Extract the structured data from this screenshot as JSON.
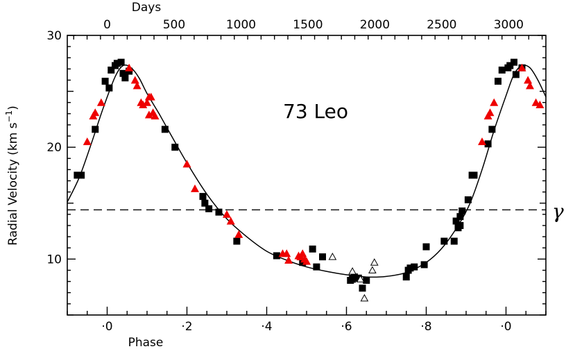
{
  "chart_data": {
    "type": "scatter",
    "title": "73 Leo",
    "xlabel": "Phase",
    "ylabel": "Radial Velocity (km s",
    "ylabel_sup": "−1",
    "ylabel_close": ")",
    "top_axis_label": "Days",
    "xlim": [
      -0.1,
      1.1
    ],
    "ylim": [
      5,
      30
    ],
    "x_ticks": [
      {
        "v": 0.0,
        "label": "·0"
      },
      {
        "v": 0.2,
        "label": "·2"
      },
      {
        "v": 0.4,
        "label": "·4"
      },
      {
        "v": 0.6,
        "label": "·6"
      },
      {
        "v": 0.8,
        "label": "·8"
      },
      {
        "v": 1.0,
        "label": "·0"
      }
    ],
    "y_ticks": [
      {
        "v": 10,
        "label": "10"
      },
      {
        "v": 20,
        "label": "20"
      },
      {
        "v": 30,
        "label": "30"
      }
    ],
    "top_ticks": [
      {
        "v": 0,
        "label": "0"
      },
      {
        "v": 500,
        "label": "500"
      },
      {
        "v": 1000,
        "label": "1000"
      },
      {
        "v": 1500,
        "label": "1500"
      },
      {
        "v": 2000,
        "label": "2000"
      },
      {
        "v": 2500,
        "label": "2500"
      },
      {
        "v": 3000,
        "label": "3000"
      }
    ],
    "days_per_phase": 2980,
    "gamma": {
      "value": 14.4,
      "label": "γ"
    },
    "fit_curve": [
      [
        -0.1,
        15.1
      ],
      [
        -0.07,
        17.3
      ],
      [
        -0.04,
        20.3
      ],
      [
        -0.01,
        23.5
      ],
      [
        0.02,
        26.3
      ],
      [
        0.04,
        27.3
      ],
      [
        0.06,
        27.1
      ],
      [
        0.08,
        26.2
      ],
      [
        0.1,
        24.8
      ],
      [
        0.13,
        23.0
      ],
      [
        0.16,
        21.1
      ],
      [
        0.2,
        18.6
      ],
      [
        0.25,
        15.8
      ],
      [
        0.3,
        13.6
      ],
      [
        0.35,
        12.0
      ],
      [
        0.4,
        10.7
      ],
      [
        0.45,
        9.9
      ],
      [
        0.5,
        9.3
      ],
      [
        0.55,
        8.9
      ],
      [
        0.6,
        8.6
      ],
      [
        0.65,
        8.4
      ],
      [
        0.7,
        8.45
      ],
      [
        0.75,
        8.8
      ],
      [
        0.8,
        9.7
      ],
      [
        0.84,
        11.0
      ],
      [
        0.88,
        13.0
      ],
      [
        0.91,
        15.0
      ],
      [
        0.94,
        18.0
      ],
      [
        0.97,
        21.5
      ],
      [
        1.0,
        24.6
      ],
      [
        1.02,
        26.5
      ],
      [
        1.04,
        27.3
      ],
      [
        1.06,
        27.1
      ],
      [
        1.08,
        26.0
      ],
      [
        1.1,
        24.5
      ]
    ],
    "series": [
      {
        "name": "black-squares",
        "marker": "square",
        "color": "#000000",
        "points": [
          [
            -0.075,
            17.5
          ],
          [
            -0.065,
            17.5
          ],
          [
            -0.03,
            21.6
          ],
          [
            -0.005,
            25.9
          ],
          [
            0.005,
            25.3
          ],
          [
            0.01,
            26.9
          ],
          [
            0.02,
            27.3
          ],
          [
            0.025,
            27.5
          ],
          [
            0.035,
            27.6
          ],
          [
            0.04,
            26.6
          ],
          [
            0.045,
            26.2
          ],
          [
            0.055,
            26.8
          ],
          [
            0.145,
            21.6
          ],
          [
            0.17,
            20.0
          ],
          [
            0.24,
            15.6
          ],
          [
            0.245,
            15.0
          ],
          [
            0.255,
            14.5
          ],
          [
            0.28,
            14.2
          ],
          [
            0.325,
            11.6
          ],
          [
            0.425,
            10.3
          ],
          [
            0.49,
            9.7
          ],
          [
            0.515,
            10.9
          ],
          [
            0.525,
            9.3
          ],
          [
            0.54,
            10.2
          ],
          [
            0.61,
            8.1
          ],
          [
            0.615,
            8.2
          ],
          [
            0.62,
            8.4
          ],
          [
            0.63,
            8.3
          ],
          [
            0.64,
            7.4
          ],
          [
            0.65,
            8.1
          ],
          [
            0.75,
            8.4
          ],
          [
            0.755,
            9.0
          ],
          [
            0.76,
            9.2
          ],
          [
            0.77,
            9.3
          ],
          [
            0.795,
            9.5
          ],
          [
            0.8,
            11.1
          ],
          [
            0.845,
            11.6
          ],
          [
            0.87,
            11.6
          ],
          [
            0.875,
            13.4
          ],
          [
            0.88,
            12.8
          ],
          [
            0.885,
            13.0
          ],
          [
            0.885,
            13.8
          ],
          [
            0.89,
            14.3
          ],
          [
            0.905,
            15.3
          ],
          [
            0.915,
            17.5
          ],
          [
            0.92,
            17.5
          ],
          [
            0.955,
            20.3
          ],
          [
            0.965,
            21.6
          ],
          [
            0.98,
            25.9
          ],
          [
            0.99,
            26.9
          ],
          [
            1.005,
            27.1
          ],
          [
            1.01,
            27.3
          ],
          [
            1.02,
            27.6
          ],
          [
            1.025,
            26.5
          ],
          [
            1.04,
            27.1
          ]
        ]
      },
      {
        "name": "red-triangles",
        "marker": "triangle",
        "color": "#ee0000",
        "points": [
          [
            -0.05,
            20.5
          ],
          [
            -0.035,
            22.8
          ],
          [
            -0.03,
            23.1
          ],
          [
            -0.015,
            24.0
          ],
          [
            0.055,
            27.1
          ],
          [
            0.07,
            26.0
          ],
          [
            0.075,
            25.5
          ],
          [
            0.085,
            24.0
          ],
          [
            0.09,
            23.8
          ],
          [
            0.1,
            24.0
          ],
          [
            0.105,
            24.5
          ],
          [
            0.105,
            22.9
          ],
          [
            0.11,
            24.5
          ],
          [
            0.115,
            23.1
          ],
          [
            0.12,
            22.8
          ],
          [
            0.2,
            18.5
          ],
          [
            0.22,
            16.3
          ],
          [
            0.3,
            14.0
          ],
          [
            0.31,
            13.4
          ],
          [
            0.33,
            12.2
          ],
          [
            0.44,
            10.5
          ],
          [
            0.45,
            10.5
          ],
          [
            0.455,
            9.9
          ],
          [
            0.48,
            10.3
          ],
          [
            0.485,
            10.2
          ],
          [
            0.49,
            10.5
          ],
          [
            0.495,
            10.0
          ],
          [
            0.5,
            9.8
          ],
          [
            0.94,
            20.5
          ],
          [
            0.955,
            22.8
          ],
          [
            0.96,
            23.1
          ],
          [
            0.97,
            24.0
          ],
          [
            1.04,
            27.1
          ],
          [
            1.055,
            26.0
          ],
          [
            1.06,
            25.5
          ],
          [
            1.075,
            24.0
          ],
          [
            1.085,
            23.8
          ]
        ]
      },
      {
        "name": "open-triangles",
        "marker": "open-triangle",
        "color": "#000000",
        "points": [
          [
            0.565,
            10.2
          ],
          [
            0.615,
            8.9
          ],
          [
            0.635,
            8.2
          ],
          [
            0.645,
            6.5
          ],
          [
            0.665,
            9.0
          ],
          [
            0.67,
            9.7
          ]
        ]
      }
    ]
  }
}
